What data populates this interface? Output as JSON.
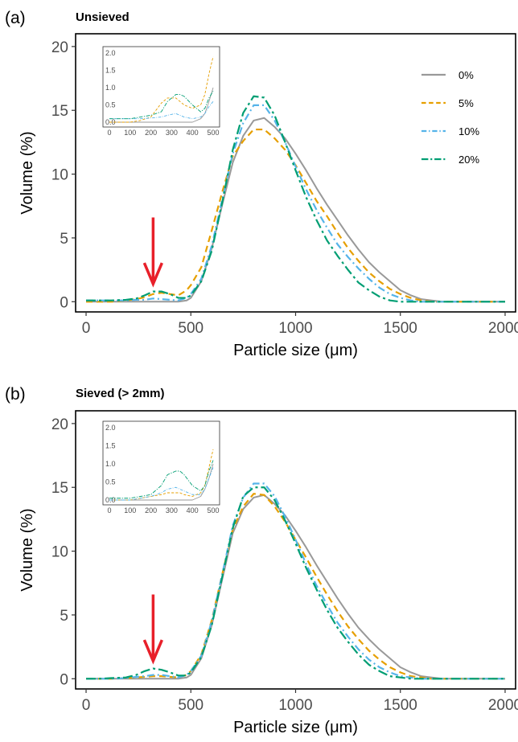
{
  "chart_data": [
    {
      "type": "line",
      "panel_label": "(a)",
      "title": "Unsieved",
      "xlabel": "Particle size (μm)",
      "ylabel": "Volume (%)",
      "xlim": [
        -50,
        2050
      ],
      "ylim": [
        -0.8,
        21
      ],
      "xticks": [
        0,
        500,
        1000,
        1500,
        2000
      ],
      "yticks": [
        0,
        5,
        10,
        15,
        20
      ],
      "x": [
        0,
        60,
        120,
        190,
        240,
        280,
        320,
        360,
        400,
        440,
        480,
        500,
        550,
        600,
        650,
        700,
        750,
        800,
        850,
        900,
        950,
        1000,
        1050,
        1100,
        1150,
        1200,
        1250,
        1300,
        1350,
        1400,
        1450,
        1500,
        1550,
        1600,
        1650,
        1700,
        1800,
        1900,
        2000
      ],
      "series": [
        {
          "name": "0%",
          "color": "#999999",
          "dash": "solid",
          "values": [
            0,
            0,
            0,
            0,
            0,
            0,
            0,
            0,
            0,
            0,
            0.1,
            0.3,
            1.6,
            4.2,
            7.6,
            10.9,
            13.0,
            14.2,
            14.4,
            13.7,
            12.8,
            11.6,
            10.3,
            8.9,
            7.6,
            6.4,
            5.2,
            4.1,
            3.1,
            2.3,
            1.6,
            0.9,
            0.5,
            0.2,
            0.1,
            0,
            0,
            0,
            0
          ]
        },
        {
          "name": "5%",
          "color": "#E69F00",
          "dash": "8,5",
          "values": [
            0,
            0,
            0,
            0.1,
            0.2,
            0.35,
            0.6,
            0.7,
            0.6,
            0.5,
            0.9,
            1.3,
            2.7,
            5.6,
            8.6,
            11.4,
            12.6,
            13.5,
            13.5,
            12.8,
            11.9,
            10.7,
            9.3,
            7.9,
            6.7,
            5.4,
            4.2,
            3.2,
            2.3,
            1.6,
            1.0,
            0.6,
            0.3,
            0.1,
            0,
            0,
            0,
            0,
            0
          ]
        },
        {
          "name": "10%",
          "color": "#56B4E9",
          "dash": "9,4,2,4",
          "values": [
            0.1,
            0.1,
            0.1,
            0.1,
            0.15,
            0.15,
            0.25,
            0.2,
            0.15,
            0.1,
            0.3,
            0.6,
            1.8,
            4.4,
            8.0,
            11.6,
            14.0,
            15.4,
            15.4,
            14.2,
            12.5,
            10.6,
            8.8,
            7.2,
            5.8,
            4.5,
            3.5,
            2.6,
            1.8,
            1.1,
            0.6,
            0.3,
            0.1,
            0,
            0,
            0,
            0,
            0,
            0
          ]
        },
        {
          "name": "20%",
          "color": "#009E73",
          "dash": "12,4,3,4",
          "values": [
            0.1,
            0.1,
            0.1,
            0.15,
            0.25,
            0.5,
            0.8,
            0.8,
            0.6,
            0.3,
            0.3,
            0.5,
            1.6,
            4.0,
            7.8,
            11.9,
            14.8,
            16.1,
            16.0,
            14.6,
            12.5,
            10.3,
            8.2,
            6.4,
            4.8,
            3.6,
            2.5,
            1.5,
            0.9,
            0.4,
            0.1,
            0,
            0,
            0,
            0,
            0,
            0,
            0,
            0
          ]
        }
      ],
      "legend": {
        "position": "top-right",
        "entries": [
          "0%",
          "5%",
          "10%",
          "20%"
        ]
      },
      "inset": {
        "xlim": [
          0,
          500
        ],
        "ylim": [
          0,
          2.0
        ],
        "xticks": [
          0,
          100,
          200,
          300,
          400,
          500
        ],
        "yticks": [
          "0.0",
          "0.5",
          "1.0",
          "1.5",
          "2.0"
        ],
        "x": [
          0,
          50,
          100,
          150,
          200,
          250,
          280,
          320,
          340,
          360,
          400,
          440,
          460,
          480,
          500
        ],
        "series": [
          {
            "name": "0%",
            "values": [
              0,
              0,
              0,
              0,
              0,
              0,
              0,
              0,
              0,
              0,
              0,
              0.1,
              0.25,
              0.6,
              1.0
            ]
          },
          {
            "name": "5%",
            "values": [
              0,
              0,
              0,
              0.05,
              0.15,
              0.55,
              0.7,
              0.7,
              0.6,
              0.5,
              0.4,
              0.5,
              0.8,
              1.4,
              1.9
            ]
          },
          {
            "name": "10%",
            "values": [
              0.1,
              0.1,
              0.1,
              0.1,
              0.12,
              0.15,
              0.2,
              0.25,
              0.2,
              0.15,
              0.1,
              0.15,
              0.25,
              0.45,
              0.6
            ]
          },
          {
            "name": "20%",
            "values": [
              0.1,
              0.1,
              0.1,
              0.15,
              0.2,
              0.3,
              0.6,
              0.8,
              0.8,
              0.75,
              0.5,
              0.3,
              0.4,
              0.7,
              0.9
            ]
          }
        ]
      },
      "annotation": {
        "type": "arrow",
        "color": "#e8202a",
        "x": 320
      }
    },
    {
      "type": "line",
      "panel_label": "(b)",
      "title": "Sieved (> 2mm)",
      "xlabel": "Particle size (μm)",
      "ylabel": "Volume (%)",
      "xlim": [
        -50,
        2050
      ],
      "ylim": [
        -0.8,
        21
      ],
      "xticks": [
        0,
        500,
        1000,
        1500,
        2000
      ],
      "yticks": [
        0,
        5,
        10,
        15,
        20
      ],
      "x": [
        0,
        60,
        120,
        190,
        240,
        280,
        320,
        360,
        400,
        440,
        480,
        500,
        550,
        600,
        650,
        700,
        750,
        800,
        850,
        900,
        950,
        1000,
        1050,
        1100,
        1150,
        1200,
        1250,
        1300,
        1350,
        1400,
        1450,
        1500,
        1550,
        1600,
        1650,
        1700,
        1800,
        1900,
        2000
      ],
      "series": [
        {
          "name": "0%",
          "color": "#999999",
          "dash": "solid",
          "values": [
            0,
            0,
            0,
            0,
            0,
            0,
            0,
            0,
            0,
            0,
            0.1,
            0.3,
            1.6,
            4.2,
            7.8,
            11.4,
            13.3,
            14.2,
            14.4,
            13.7,
            12.8,
            11.6,
            10.3,
            8.9,
            7.6,
            6.3,
            5.1,
            4.0,
            3.1,
            2.3,
            1.6,
            0.9,
            0.5,
            0.2,
            0.1,
            0,
            0,
            0,
            0
          ]
        },
        {
          "name": "5%",
          "color": "#E69F00",
          "dash": "8,5",
          "values": [
            0,
            0,
            0,
            0.05,
            0.1,
            0.15,
            0.2,
            0.2,
            0.15,
            0.1,
            0.3,
            0.6,
            1.9,
            4.6,
            8.2,
            11.7,
            13.5,
            14.5,
            14.4,
            13.5,
            12.3,
            10.9,
            9.5,
            8.0,
            6.6,
            5.3,
            4.1,
            3.1,
            2.2,
            1.5,
            0.9,
            0.5,
            0.2,
            0.1,
            0,
            0,
            0,
            0,
            0
          ]
        },
        {
          "name": "10%",
          "color": "#56B4E9",
          "dash": "9,4,2,4",
          "values": [
            0,
            0,
            0,
            0.05,
            0.15,
            0.2,
            0.3,
            0.3,
            0.2,
            0.1,
            0.3,
            0.6,
            1.8,
            4.5,
            8.2,
            12.0,
            14.2,
            15.3,
            15.3,
            14.3,
            12.7,
            10.9,
            9.0,
            7.3,
            5.8,
            4.4,
            3.3,
            2.3,
            1.5,
            0.9,
            0.5,
            0.2,
            0.1,
            0,
            0,
            0,
            0,
            0,
            0
          ]
        },
        {
          "name": "20%",
          "color": "#009E73",
          "dash": "12,4,3,4",
          "values": [
            0,
            0,
            0.05,
            0.1,
            0.3,
            0.6,
            0.8,
            0.7,
            0.5,
            0.25,
            0.25,
            0.5,
            1.7,
            4.2,
            8.0,
            11.8,
            14.3,
            15.0,
            15.0,
            14.0,
            12.4,
            10.6,
            8.7,
            7.0,
            5.4,
            4.0,
            2.9,
            1.9,
            1.1,
            0.6,
            0.2,
            0.1,
            0,
            0,
            0,
            0,
            0,
            0,
            0
          ]
        }
      ],
      "inset": {
        "xlim": [
          0,
          500
        ],
        "ylim": [
          0,
          2.0
        ],
        "xticks": [
          0,
          100,
          200,
          300,
          400,
          500
        ],
        "yticks": [
          "0.0",
          "0.5",
          "1.0",
          "1.5",
          "2.0"
        ],
        "x": [
          0,
          50,
          100,
          150,
          200,
          250,
          280,
          320,
          340,
          360,
          400,
          440,
          460,
          480,
          500
        ],
        "series": [
          {
            "name": "0%",
            "values": [
              0,
              0,
              0,
              0,
              0,
              0,
              0,
              0,
              0,
              0,
              0,
              0.1,
              0.3,
              0.6,
              1.0
            ]
          },
          {
            "name": "5%",
            "values": [
              0,
              0,
              0,
              0.05,
              0.1,
              0.15,
              0.2,
              0.2,
              0.2,
              0.15,
              0.1,
              0.2,
              0.4,
              0.9,
              1.4
            ]
          },
          {
            "name": "10%",
            "values": [
              0,
              0,
              0,
              0.05,
              0.1,
              0.2,
              0.3,
              0.35,
              0.3,
              0.25,
              0.15,
              0.15,
              0.3,
              0.6,
              0.9
            ]
          },
          {
            "name": "20%",
            "values": [
              0.05,
              0.05,
              0.05,
              0.1,
              0.15,
              0.4,
              0.7,
              0.8,
              0.8,
              0.7,
              0.4,
              0.25,
              0.4,
              0.8,
              1.1
            ]
          }
        ]
      },
      "annotation": {
        "type": "arrow",
        "color": "#e8202a",
        "x": 320
      }
    }
  ]
}
